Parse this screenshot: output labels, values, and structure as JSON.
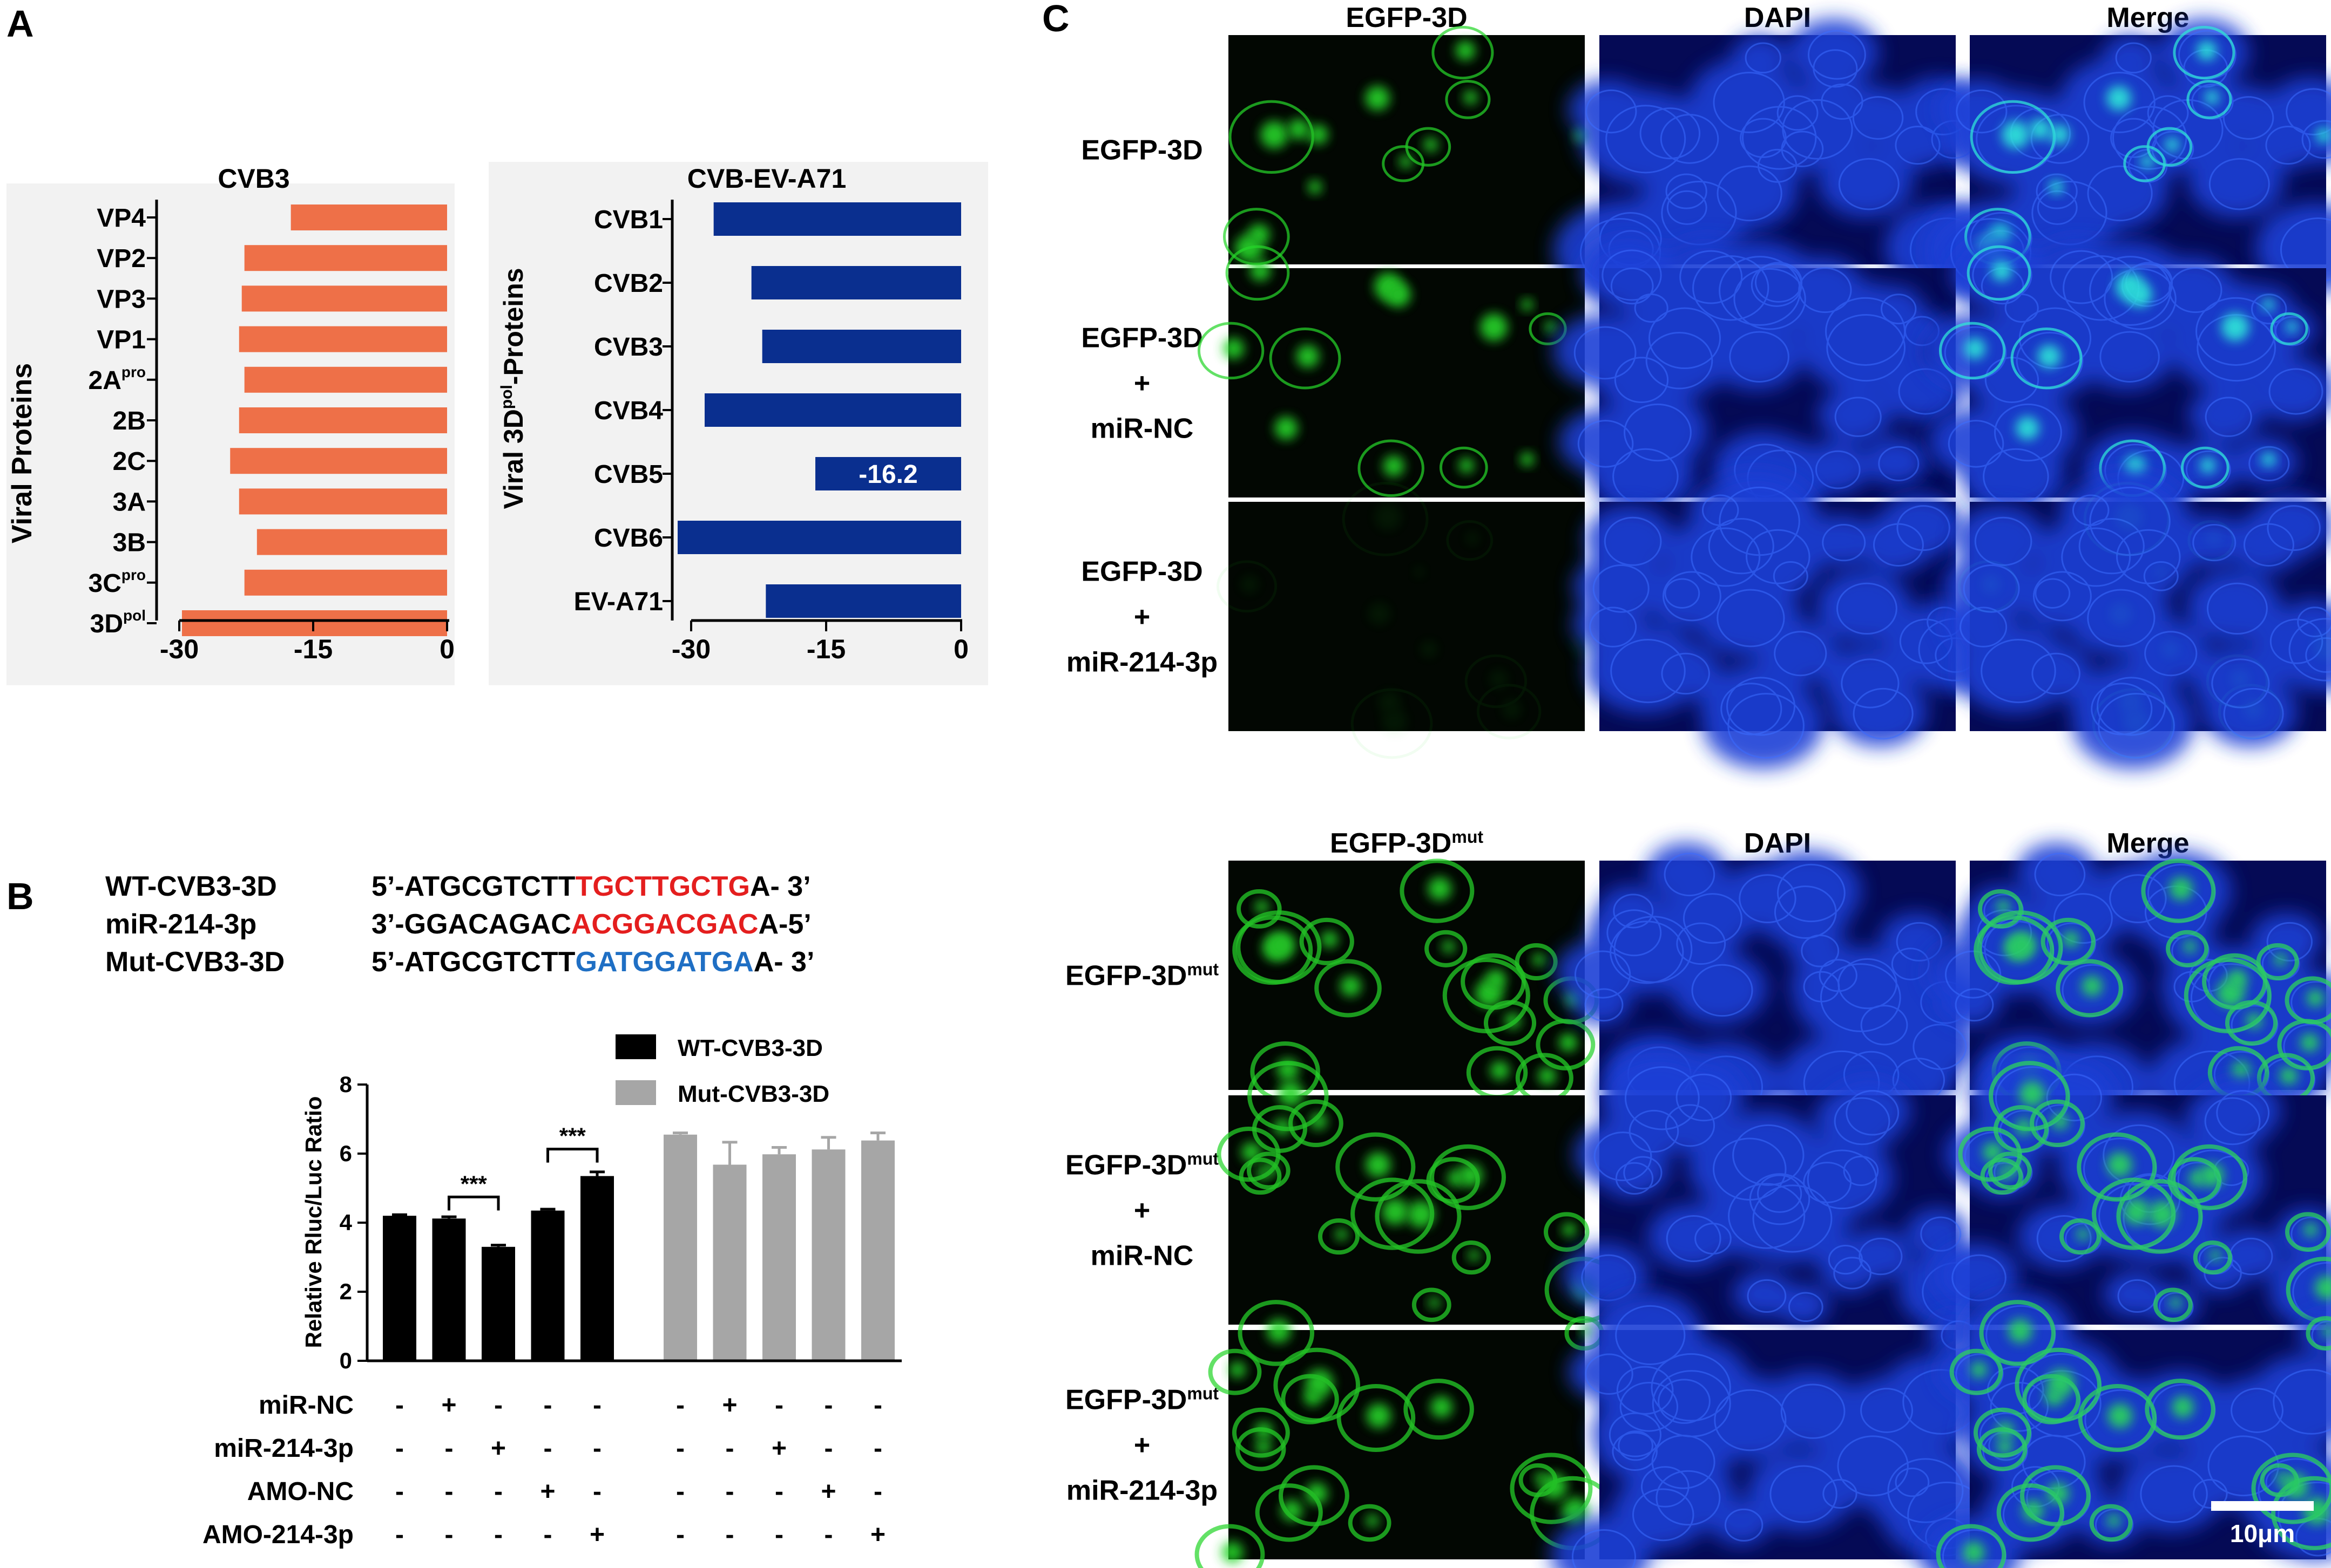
{
  "panels": {
    "a": "A",
    "b": "B",
    "c": "C"
  },
  "chart_data": [
    {
      "type": "bar",
      "orientation": "horizontal",
      "title": "CVB3",
      "ylabel": "Viral Proteins",
      "xlabel": "",
      "categories": [
        "VP4",
        "VP2",
        "VP3",
        "VP1",
        "2A",
        "2B",
        "2C",
        "3A",
        "3B",
        "3C",
        "3D"
      ],
      "category_superscripts": [
        "",
        "",
        "",
        "",
        "pro",
        "",
        "",
        "",
        "",
        "pro",
        "pol"
      ],
      "values": [
        -17.5,
        -22.7,
        -23,
        -23.3,
        -22.7,
        -23.3,
        -24.3,
        -23.3,
        -21.3,
        -22.7,
        -29.7
      ],
      "xlim": [
        -30,
        0
      ],
      "xticks": [
        "-30",
        "-15",
        "0"
      ],
      "color": "#EE7048"
    },
    {
      "type": "bar",
      "orientation": "horizontal",
      "title": "CVB-EV-A71",
      "ylabel_main": "Viral 3D",
      "ylabel_sup": "pol",
      "ylabel_tail": "-Proteins",
      "xlabel": "",
      "categories": [
        "CVB1",
        "CVB2",
        "CVB3",
        "CVB4",
        "CVB5",
        "CVB6",
        "EV-A71"
      ],
      "values": [
        -27.5,
        -23.3,
        -22.1,
        -28.5,
        -16.2,
        -31.5,
        -21.7
      ],
      "annotation": {
        "category": "CVB5",
        "text": "-16.2"
      },
      "xlim": [
        -30,
        0
      ],
      "xticks": [
        "-30",
        "-15",
        "0"
      ],
      "color": "#0A2F8F"
    },
    {
      "type": "bar",
      "ylabel": "Relative Rluc/Luc Ratio",
      "xlabel": "",
      "ylim": [
        0,
        8
      ],
      "yticks": [
        "0",
        "2",
        "4",
        "6",
        "8"
      ],
      "series": [
        {
          "name": "WT-CVB3-3D",
          "color": "#000000",
          "values": [
            4.2,
            4.12,
            3.3,
            4.35,
            5.35
          ],
          "errors": [
            0.03,
            0.05,
            0.05,
            0.04,
            0.12
          ]
        },
        {
          "name": "Mut-CVB3-3D",
          "color": "#A6A6A6",
          "values": [
            6.55,
            5.68,
            5.98,
            6.12,
            6.38
          ],
          "errors": [
            0.05,
            0.65,
            0.2,
            0.35,
            0.22
          ]
        }
      ],
      "significance": [
        {
          "between": [
            1,
            2
          ],
          "label": "***"
        },
        {
          "between": [
            3,
            4
          ],
          "label": "***"
        }
      ],
      "conditions": [
        {
          "name": "miR-NC",
          "signs": [
            "-",
            "+",
            "-",
            "-",
            "-",
            "-",
            "+",
            "-",
            "-",
            "-"
          ]
        },
        {
          "name": "miR-214-3p",
          "signs": [
            "-",
            "-",
            "+",
            "-",
            "-",
            "-",
            "-",
            "+",
            "-",
            "-"
          ]
        },
        {
          "name": "AMO-NC",
          "signs": [
            "-",
            "-",
            "-",
            "+",
            "-",
            "-",
            "-",
            "-",
            "+",
            "-"
          ]
        },
        {
          "name": "AMO-214-3p",
          "signs": [
            "-",
            "-",
            "-",
            "-",
            "+",
            "-",
            "-",
            "-",
            "-",
            "+"
          ]
        }
      ]
    }
  ],
  "sequences": [
    {
      "name": "WT-CVB3-3D",
      "pre": "5’-ATGCGTCTT",
      "highlight": "TGCTTGCTG",
      "post": "A-  3’",
      "color": "#E41E1E"
    },
    {
      "name": "miR-214-3p",
      "pre": "3’-GGACAGAC",
      "highlight": "ACGGACGAC",
      "post": "A-5’",
      "color": "#E41E1E"
    },
    {
      "name": "Mut-CVB3-3D",
      "pre": "5’-ATGCGTCTT",
      "highlight": "GATGGATGA",
      "post": "A-  3’",
      "color": "#1F6FC4"
    }
  ],
  "microscopy": {
    "top": {
      "columns": [
        "EGFP-3D",
        "DAPI",
        "Merge"
      ],
      "rows": [
        [
          "EGFP-3D"
        ],
        [
          "EGFP-3D",
          "+",
          "miR-NC"
        ],
        [
          "EGFP-3D",
          "+",
          "miR-214-3p"
        ]
      ]
    },
    "bottom": {
      "columns": [
        "EGFP-3D",
        "DAPI",
        "Merge"
      ],
      "column_sup": [
        "mut",
        "",
        ""
      ],
      "rows": [
        [
          "EGFP-3D"
        ],
        [
          "EGFP-3D",
          "+",
          "miR-NC"
        ],
        [
          "EGFP-3D",
          "+",
          "miR-214-3p"
        ]
      ],
      "row_sup": "mut"
    },
    "scale_bar": "10μm"
  }
}
